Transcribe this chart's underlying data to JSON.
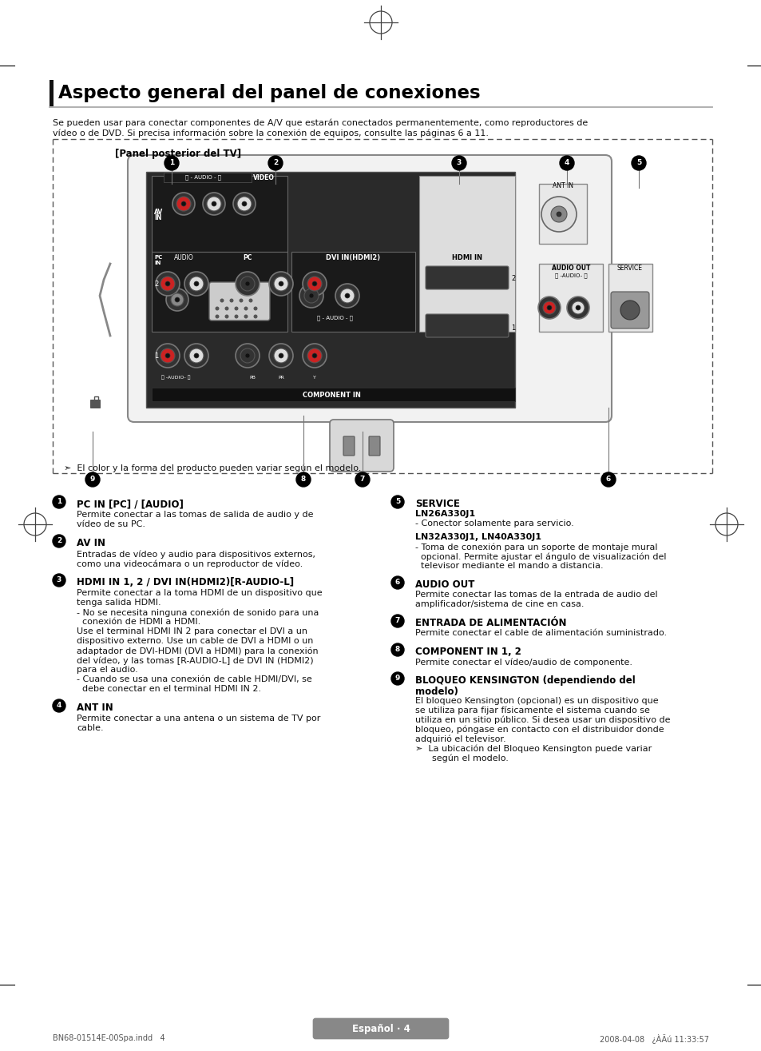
{
  "title": "Aspecto general del panel de conexiones",
  "intro_line1": "Se pueden usar para conectar componentes de A/V que estarán conectados permanentemente, como reproductores de",
  "intro_line2": "vídeo o de DVD. Si precisa información sobre la conexión de equipos, consulte las páginas 6 a 11.",
  "panel_label": "[Panel posterior del TV]",
  "note": "➣  El color y la forma del producto pueden variar según el modelo.",
  "items_left": [
    {
      "num": "1",
      "title": "PC IN [PC] / [AUDIO]",
      "body": [
        "Permite conectar a las tomas de salida de audio y de",
        "vídeo de su PC."
      ]
    },
    {
      "num": "2",
      "title": "AV IN",
      "body": [
        "Entradas de vídeo y audio para dispositivos externos,",
        "como una videocámara o un reproductor de vídeo."
      ]
    },
    {
      "num": "3",
      "title": "HDMI IN 1, 2 / DVI IN(HDMI2)[R-AUDIO-L]",
      "body": [
        "Permite conectar a la toma HDMI de un dispositivo que",
        "tenga salida HDMI.",
        "- No se necesita ninguna conexión de sonido para una",
        "  conexión de HDMI a HDMI.",
        "Use el terminal HDMI IN 2 para conectar el DVI a un",
        "dispositivo externo. Use un cable de DVI a HDMI o un",
        "adaptador de DVI-HDMI (DVI a HDMI) para la conexión",
        "del vídeo, y las tomas [R-AUDIO-L] de DVI IN (HDMI2)",
        "para el audio.",
        "- Cuando se usa una conexión de cable HDMI/DVI, se",
        "  debe conectar en el terminal HDMI IN 2."
      ]
    },
    {
      "num": "4",
      "title": "ANT IN",
      "body": [
        "Permite conectar a una antena o un sistema de TV por",
        "cable."
      ]
    }
  ],
  "items_right": [
    {
      "num": "5",
      "title": "SERVICE",
      "body": [
        "LN26A330J1",
        "- Conector solamente para servicio.",
        "",
        "LN32A330J1, LN40A330J1",
        "- Toma de conexión para un soporte de montaje mural",
        "  opcional. Permite ajustar el ángulo de visualización del",
        "  televisor mediante el mando a distancia."
      ]
    },
    {
      "num": "6",
      "title": "AUDIO OUT",
      "body": [
        "Permite conectar las tomas de la entrada de audio del",
        "amplificador/sistema de cine en casa."
      ]
    },
    {
      "num": "7",
      "title": "ENTRADA DE ALIMENTACIÓN",
      "body": [
        "Permite conectar el cable de alimentación suministrado."
      ]
    },
    {
      "num": "8",
      "title": "COMPONENT IN 1, 2",
      "body": [
        "Permite conectar el vídeo/audio de componente."
      ]
    },
    {
      "num": "9",
      "title": "BLOQUEO KENSINGTON (dependiendo del",
      "title2": "modelo)",
      "body": [
        "El bloqueo Kensington (opcional) es un dispositivo que",
        "se utiliza para fijar físicamente el sistema cuando se",
        "utiliza en un sitio público. Si desea usar un dispositivo de",
        "bloqueo, póngase en contacto con el distribuidor donde",
        "adquirió el televisor.",
        "➣  La ubicación del Bloqueo Kensington puede variar",
        "      según el modelo."
      ]
    }
  ],
  "footer_left": "BN68-01514E-00Spa.indd   4",
  "footer_right": "2008-04-08   ¿ÀÃú 11:33:57",
  "footer_center": "Español · 4"
}
